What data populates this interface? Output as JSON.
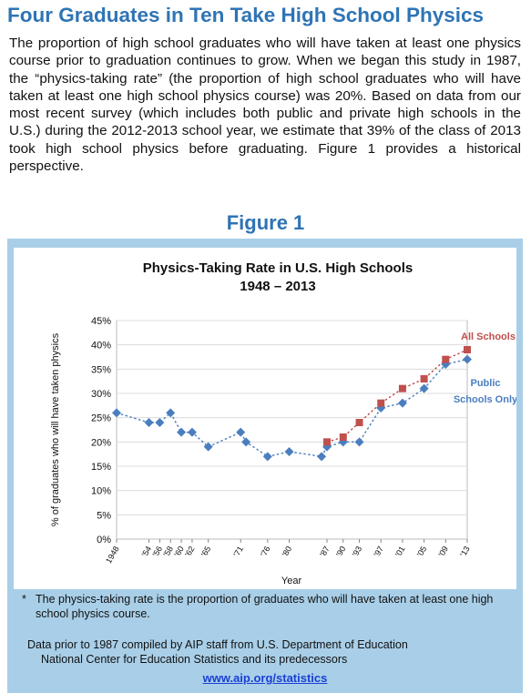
{
  "article": {
    "headline": "Four Graduates in Ten Take High School Physics",
    "paragraph": "The proportion of high school graduates who will have taken at least one physics course prior to graduation continues to grow. When we began this study in 1987, the “physics-taking rate” (the proportion of high school graduates who will have taken at least one high school physics course) was 20%. Based on data from our most recent survey (which includes both public and private high schools in the U.S.) during the 2012-2013 school year, we estimate that 39% of the class of 2013 took high school physics before graduating. Figure 1 provides a historical perspective."
  },
  "figure": {
    "label": "Figure 1",
    "note_marker": "*",
    "note": "The physics-taking rate is the proportion of graduates who will have taken at least one high school physics course.",
    "credit_line1": "Data prior to 1987 compiled by AIP staff from U.S. Department of Education",
    "credit_line2": "National Center for Education Statistics and its predecessors",
    "link": "www.aip.org/statistics"
  },
  "colors": {
    "headline": "#2e74b5",
    "panel": "#a9cfe8",
    "public_series": "#4a7ebf",
    "all_series": "#c0504d"
  },
  "chart_data": {
    "type": "line",
    "title": "Physics-Taking Rate in U.S. High Schools",
    "subtitle": "1948 – 2013",
    "xlabel": "Year",
    "ylabel": "% of graduates who will have taken physics",
    "ylim": [
      0,
      45
    ],
    "xlim": [
      1948,
      2013
    ],
    "y_ticks": [
      "0%",
      "5%",
      "10%",
      "15%",
      "20%",
      "25%",
      "30%",
      "35%",
      "40%",
      "45%"
    ],
    "x_ticks": [
      {
        "x": 1948,
        "label": "1948"
      },
      {
        "x": 1954,
        "label": "'54"
      },
      {
        "x": 1956,
        "label": "'56"
      },
      {
        "x": 1958,
        "label": "'58"
      },
      {
        "x": 1960,
        "label": "'60"
      },
      {
        "x": 1962,
        "label": "'62"
      },
      {
        "x": 1965,
        "label": "'65"
      },
      {
        "x": 1971,
        "label": "'71"
      },
      {
        "x": 1976,
        "label": "'76"
      },
      {
        "x": 1980,
        "label": "'80"
      },
      {
        "x": 1987,
        "label": "'87"
      },
      {
        "x": 1990,
        "label": "'90"
      },
      {
        "x": 1993,
        "label": "'93"
      },
      {
        "x": 1997,
        "label": "'97"
      },
      {
        "x": 2001,
        "label": "'01"
      },
      {
        "x": 2005,
        "label": "'05"
      },
      {
        "x": 2009,
        "label": "'09"
      },
      {
        "x": 2013,
        "label": "'13"
      }
    ],
    "grid": true,
    "series": [
      {
        "name": "Public Schools Only",
        "marker": "diamond",
        "x": [
          1948,
          1954,
          1956,
          1958,
          1960,
          1962,
          1965,
          1971,
          1972,
          1976,
          1980,
          1986,
          1987,
          1990,
          1993,
          1997,
          2001,
          2005,
          2009,
          2013
        ],
        "y": [
          26,
          24,
          24,
          26,
          22,
          22,
          19,
          22,
          20,
          17,
          18,
          17,
          19,
          20,
          20,
          27,
          28,
          31,
          36,
          37
        ]
      },
      {
        "name": "All Schools",
        "marker": "square",
        "x": [
          1987,
          1990,
          1993,
          1997,
          2001,
          2005,
          2009,
          2013
        ],
        "y": [
          20,
          21,
          24,
          28,
          31,
          33,
          37,
          39
        ]
      }
    ]
  }
}
